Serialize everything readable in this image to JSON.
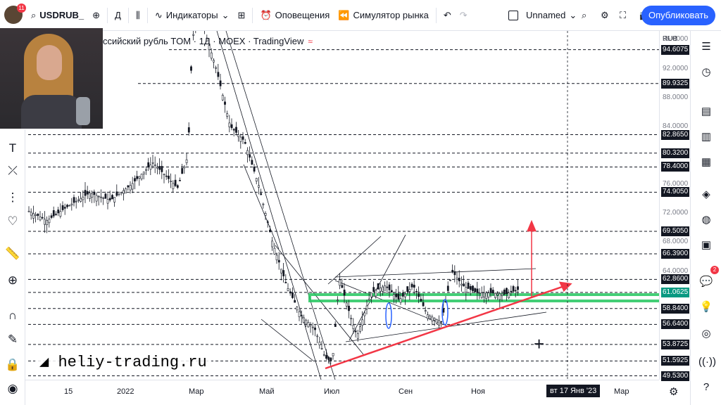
{
  "header": {
    "notification_count": "11",
    "symbol": "USDRUB_",
    "interval": "Д",
    "indicators_label": "Индикаторы",
    "alerts_label": "Оповещения",
    "replay_label": "Симулятор рынка",
    "layout_name": "Unnamed",
    "publish_label": "Опубликовать"
  },
  "legend": {
    "title": "ссийский рубль TOM · 1Д · MOEX · TradingView"
  },
  "price_axis": {
    "currency": "RUB",
    "labels": [
      "96.0000",
      "92.0000",
      "88.0000",
      "84.0000",
      "76.0000",
      "72.0000",
      "68.0000",
      "64.0000"
    ],
    "marked_levels": [
      "94.6075",
      "89.9325",
      "82.8650",
      "80.3200",
      "78.4000",
      "74.9050",
      "69.5050",
      "66.3900",
      "62.8600",
      "61.0625",
      "58.8400",
      "56.6400",
      "53.8725",
      "51.5925",
      "49.5300"
    ]
  },
  "time_axis": {
    "labels": [
      "15",
      "2022",
      "Мар",
      "Май",
      "Июл",
      "Сен",
      "Ноя",
      "Мар"
    ],
    "cursor_label": "вт 17 Янв '23"
  },
  "watermark": "heliy-trading.ru",
  "right_toolbar": {
    "notification_count": "2"
  },
  "colors": {
    "accent": "#2962ff",
    "trend_arrow": "#f23645",
    "support_zone": "#22c55e",
    "candles": "#131722",
    "price_marker": "#089981"
  },
  "icons": {
    "add_symbol": "plus-circle-icon",
    "candles": "candles-icon",
    "templates": "grid-icon",
    "alert": "alarm-clock-icon",
    "replay": "rewind-icon",
    "undo": "undo-icon",
    "redo": "redo-icon",
    "search": "search-icon",
    "settings": "gear-icon",
    "fullscreen": "fullscreen-icon",
    "snapshot": "camera-icon"
  }
}
